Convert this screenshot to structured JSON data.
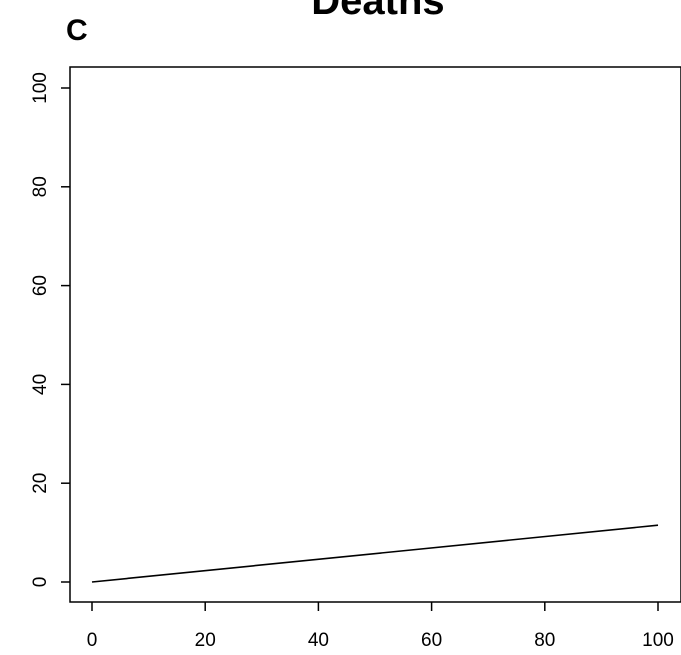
{
  "panel_label": "C",
  "chart_data": {
    "type": "line",
    "title": "Deaths",
    "xlabel": "",
    "ylabel": "",
    "xlim": [
      0,
      100
    ],
    "ylim": [
      0,
      100
    ],
    "x_ticks": [
      0,
      20,
      40,
      60,
      80,
      100
    ],
    "y_ticks": [
      0,
      20,
      40,
      60,
      80,
      100
    ],
    "grid": false,
    "series": [
      {
        "x": [
          0,
          100
        ],
        "y": [
          0,
          11.5
        ],
        "color": "#000000"
      }
    ]
  }
}
